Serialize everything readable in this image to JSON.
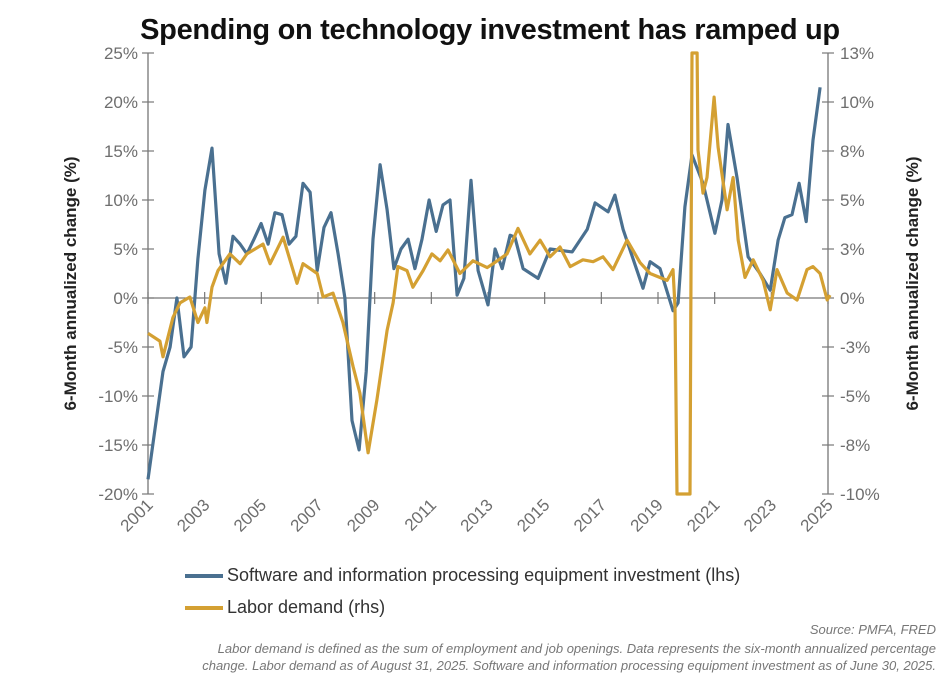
{
  "chart_data": {
    "type": "line",
    "title": "Spending on technology investment has ramped up",
    "ylabel_left": "6-Month annualized change (%)",
    "ylabel_right": "6-Month annualized change (%)",
    "xlim": [
      2001,
      2025
    ],
    "ylim_left": [
      -20,
      25
    ],
    "ylim_right": [
      -10,
      12.5
    ],
    "x_ticks": [
      "2001",
      "2003",
      "2005",
      "2007",
      "2009",
      "2011",
      "2013",
      "2015",
      "2017",
      "2019",
      "2021",
      "2023",
      "2025"
    ],
    "y_ticks_left": [
      {
        "value": 25,
        "label": "25%"
      },
      {
        "value": 20,
        "label": "20%"
      },
      {
        "value": 15,
        "label": "15%"
      },
      {
        "value": 10,
        "label": "10%"
      },
      {
        "value": 5,
        "label": "5%"
      },
      {
        "value": 0,
        "label": "0%"
      },
      {
        "value": -5,
        "label": "-5%"
      },
      {
        "value": -10,
        "label": "-10%"
      },
      {
        "value": -15,
        "label": "-15%"
      },
      {
        "value": -20,
        "label": "-20%"
      }
    ],
    "y_ticks_right": [
      {
        "value": 12.5,
        "label": "13%"
      },
      {
        "value": 10,
        "label": "10%"
      },
      {
        "value": 7.5,
        "label": "8%"
      },
      {
        "value": 5,
        "label": "5%"
      },
      {
        "value": 2.5,
        "label": "3%"
      },
      {
        "value": 0,
        "label": "0%"
      },
      {
        "value": -2.5,
        "label": "-3%"
      },
      {
        "value": -5,
        "label": "-5%"
      },
      {
        "value": -7.5,
        "label": "-8%"
      },
      {
        "value": -10,
        "label": "-10%"
      }
    ],
    "grid": false,
    "legend_position": "bottom",
    "series": [
      {
        "name": "Software and information processing equipment investment (lhs)",
        "axis": "left",
        "color": "#4a7090",
        "x": [
          2001.0,
          2001.53,
          2001.78,
          2002.02,
          2002.27,
          2002.52,
          2002.76,
          2003.01,
          2003.26,
          2003.51,
          2003.75,
          2004.0,
          2004.25,
          2004.49,
          2004.74,
          2004.99,
          2005.24,
          2005.48,
          2005.73,
          2005.98,
          2006.22,
          2006.47,
          2006.72,
          2006.97,
          2007.21,
          2007.46,
          2007.71,
          2007.95,
          2008.2,
          2008.45,
          2008.7,
          2008.94,
          2009.19,
          2009.44,
          2009.68,
          2009.93,
          2010.18,
          2010.42,
          2010.67,
          2010.92,
          2011.17,
          2011.41,
          2011.66,
          2011.91,
          2012.15,
          2012.4,
          2012.65,
          2013.0,
          2013.25,
          2013.5,
          2013.78,
          2013.95,
          2014.24,
          2014.77,
          2015.19,
          2015.97,
          2016.5,
          2016.78,
          2017.24,
          2017.48,
          2017.77,
          2018.47,
          2018.72,
          2019.07,
          2019.53,
          2019.71,
          2019.95,
          2020.2,
          2020.59,
          2021.01,
          2021.26,
          2021.47,
          2021.79,
          2022.18,
          2022.6,
          2022.96,
          2023.24,
          2023.48,
          2023.73,
          2023.98,
          2024.23,
          2024.47,
          2024.72
        ],
        "y": [
          -18.5,
          -7.5,
          -5,
          0,
          -6,
          -5,
          4,
          11,
          15.3,
          4.5,
          1.5,
          6.3,
          5.5,
          4.5,
          6,
          7.6,
          5.5,
          8.7,
          8.5,
          5.5,
          6.3,
          11.7,
          10.8,
          2.8,
          7.2,
          8.7,
          4.5,
          0,
          -12.5,
          -15.5,
          -7.5,
          6,
          13.6,
          9,
          3,
          5,
          6,
          3,
          6,
          10,
          6.8,
          9.5,
          10,
          0.3,
          2,
          12,
          2.8,
          -0.7,
          5,
          3,
          6.4,
          6.2,
          3,
          2,
          5,
          4.7,
          7,
          9.7,
          8.8,
          10.5,
          7,
          1,
          3.7,
          3,
          -1.3,
          -0.5,
          9.3,
          14.6,
          11.7,
          6.6,
          10,
          17.7,
          12.3,
          4.2,
          2.5,
          0.8,
          5.9,
          8.2,
          8.5,
          11.7,
          7.8,
          16.1,
          21.5
        ]
      },
      {
        "name": "Labor demand (rhs)",
        "axis": "right",
        "color": "#d4a032",
        "x": [
          2001.0,
          2001.42,
          2001.53,
          2001.88,
          2002.13,
          2002.48,
          2002.76,
          2003.01,
          2003.08,
          2003.26,
          2003.47,
          2003.89,
          2004.25,
          2004.49,
          2005.06,
          2005.31,
          2005.77,
          2006.26,
          2006.47,
          2006.97,
          2007.18,
          2007.53,
          2007.88,
          2008.24,
          2008.48,
          2008.77,
          2009.08,
          2009.44,
          2009.65,
          2009.82,
          2010.14,
          2010.35,
          2010.71,
          2011.02,
          2011.31,
          2011.59,
          2012.01,
          2012.47,
          2012.97,
          2013.18,
          2013.67,
          2014.06,
          2014.48,
          2014.84,
          2015.19,
          2015.54,
          2015.9,
          2016.35,
          2016.71,
          2017.06,
          2017.41,
          2017.91,
          2018.37,
          2018.72,
          2019.32,
          2019.53,
          2019.6,
          2019.67,
          2020.13,
          2020.2,
          2020.38,
          2020.41,
          2020.59,
          2020.73,
          2020.98,
          2021.12,
          2021.44,
          2021.65,
          2021.83,
          2022.07,
          2022.36,
          2022.71,
          2022.96,
          2023.2,
          2023.56,
          2023.91,
          2024.26,
          2024.47,
          2024.72,
          2024.97,
          2025.07
        ],
        "y": [
          -1.8,
          -2.2,
          -3.0,
          -1.0,
          -0.25,
          0.05,
          -1.25,
          -0.5,
          -1.25,
          0.55,
          1.4,
          2.25,
          1.75,
          2.25,
          2.75,
          1.75,
          3.1,
          0.75,
          1.75,
          1.25,
          0.05,
          0.25,
          -1.25,
          -3.5,
          -4.85,
          -7.9,
          -5.2,
          -1.65,
          -0.25,
          1.6,
          1.4,
          0.55,
          1.4,
          2.25,
          1.9,
          2.45,
          1.25,
          1.9,
          1.55,
          1.75,
          2.25,
          3.55,
          2.25,
          2.95,
          2.1,
          2.6,
          1.6,
          1.95,
          1.85,
          2.1,
          1.45,
          2.95,
          1.8,
          1.25,
          0.9,
          1.45,
          -0.45,
          -10,
          -10,
          12.5,
          12.5,
          7.55,
          5.35,
          6.15,
          10.25,
          7.7,
          4.5,
          6.15,
          2.95,
          1.05,
          1.95,
          0.9,
          -0.6,
          1.45,
          0.25,
          -0.1,
          1.45,
          1.6,
          1.25,
          -0.1,
          0.15
        ]
      }
    ]
  },
  "legend": {
    "items": [
      {
        "label": "Software and information processing equipment investment (lhs)",
        "color": "#4a7090"
      },
      {
        "label": "Labor demand (rhs)",
        "color": "#d4a032"
      }
    ]
  },
  "footer": {
    "source": "Source: PMFA, FRED",
    "note": "Labor demand is defined as the sum of employment and job openings. Data represents the six-month annualized percentage change. Labor demand as of August 31, 2025. Software and information processing equipment investment as of June 30, 2025."
  }
}
